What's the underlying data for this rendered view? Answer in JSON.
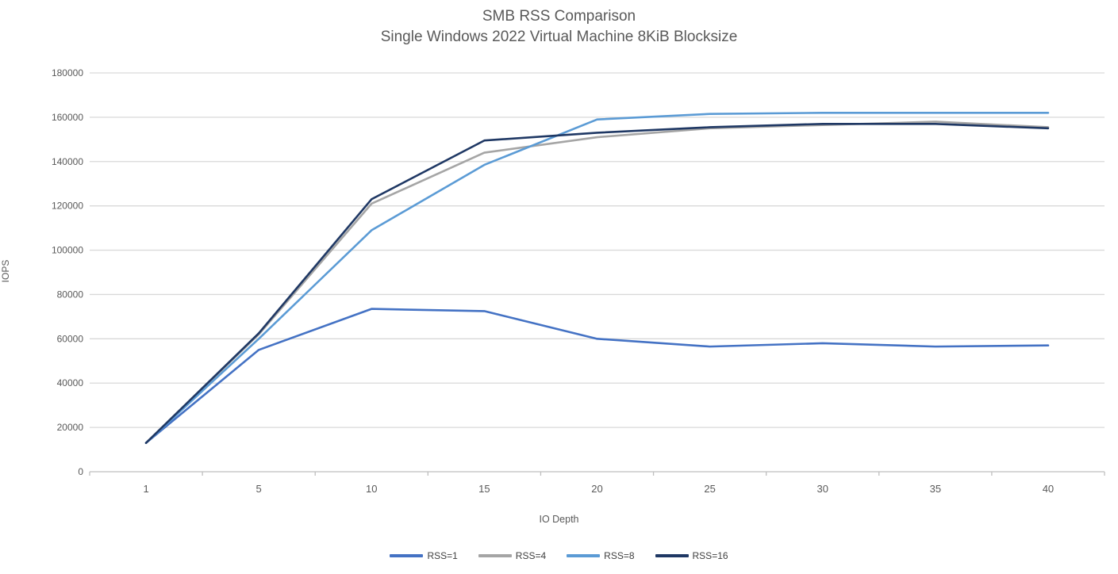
{
  "chart_data": {
    "type": "line",
    "title": "SMB RSS Comparison",
    "subtitle": "Single Windows 2022 Virtual Machine 8KiB Blocksize",
    "xlabel": "IO Depth",
    "ylabel": "IOPS",
    "categories": [
      1,
      5,
      10,
      15,
      20,
      25,
      30,
      35,
      40
    ],
    "series": [
      {
        "name": "RSS=1",
        "color": "#4472C4",
        "values": [
          13000,
          55000,
          73500,
          72500,
          60000,
          56500,
          58000,
          56500,
          57000
        ]
      },
      {
        "name": "RSS=4",
        "color": "#A5A5A5",
        "values": [
          13000,
          62000,
          121000,
          144000,
          151000,
          155000,
          156500,
          158000,
          155500
        ]
      },
      {
        "name": "RSS=8",
        "color": "#5B9BD5",
        "values": [
          13000,
          60000,
          109000,
          138500,
          159000,
          161500,
          162000,
          162000,
          162000
        ]
      },
      {
        "name": "RSS=16",
        "color": "#1F3864",
        "values": [
          13000,
          62500,
          123000,
          149500,
          153000,
          155500,
          157000,
          157000,
          155000
        ]
      }
    ],
    "ylim": [
      0,
      180000
    ],
    "ytick_step": 20000,
    "grid": "horizontal",
    "legend_position": "bottom"
  },
  "colors": {
    "gridline": "#D9D9D9",
    "axis_line": "#BFBFBF",
    "tick_text": "#595959"
  }
}
